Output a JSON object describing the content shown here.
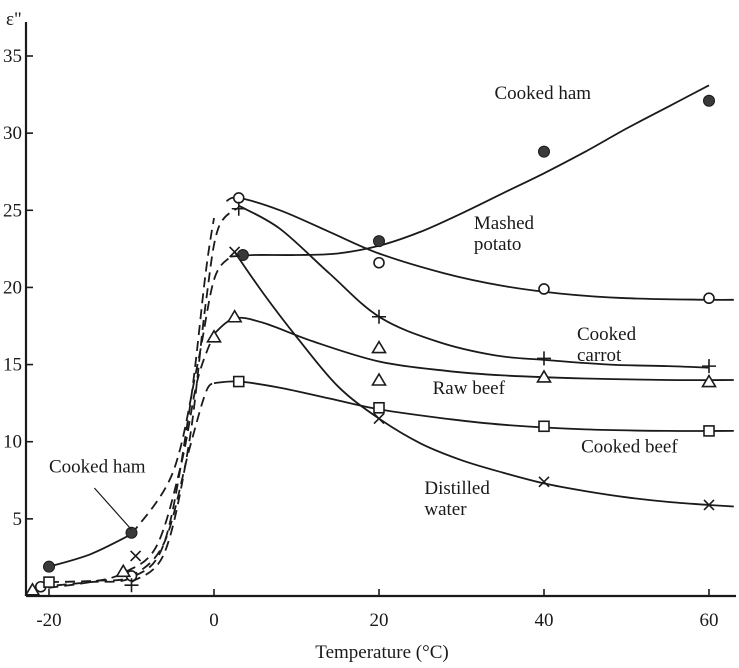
{
  "chart_data": {
    "type": "line",
    "ylabel": "ε\"",
    "xlabel": "Temperature (°C)",
    "xlim": [
      -20,
      62
    ],
    "ylim": [
      0,
      37
    ],
    "xticks": [
      -20,
      0,
      20,
      40,
      60
    ],
    "yticks": [
      5,
      10,
      15,
      20,
      25,
      30,
      35
    ],
    "grid": false,
    "series": [
      {
        "name": "Cooked ham",
        "marker": "filled-circle",
        "points": [
          [
            -20,
            1.9
          ],
          [
            -10,
            4.1
          ],
          [
            3.5,
            22.1
          ],
          [
            20,
            23.0
          ],
          [
            40,
            28.8
          ],
          [
            60,
            32.1
          ]
        ],
        "curve": [
          [
            -20,
            1.9
          ],
          [
            -15,
            2.7
          ],
          [
            -10,
            4.0
          ],
          [
            -5,
            8.0
          ],
          [
            -2,
            15.0
          ],
          [
            0,
            20.5
          ],
          [
            2,
            22.0
          ],
          [
            5,
            22.1
          ],
          [
            10,
            22.1
          ],
          [
            15,
            22.2
          ],
          [
            20,
            22.7
          ],
          [
            25,
            23.6
          ],
          [
            30,
            24.8
          ],
          [
            35,
            26.1
          ],
          [
            40,
            27.4
          ],
          [
            45,
            28.8
          ],
          [
            50,
            30.3
          ],
          [
            55,
            31.7
          ],
          [
            60,
            33.1
          ]
        ],
        "dashed_below": -10
      },
      {
        "name": "Mashed potato",
        "marker": "open-circle",
        "points": [
          [
            -21,
            0.6
          ],
          [
            -10,
            1.3
          ],
          [
            3,
            25.8
          ],
          [
            20,
            21.6
          ],
          [
            40,
            19.9
          ],
          [
            60,
            19.3
          ]
        ],
        "curve": [
          [
            -21,
            0.6
          ],
          [
            -15,
            0.9
          ],
          [
            -10,
            1.2
          ],
          [
            -6,
            3.5
          ],
          [
            -3,
            12.0
          ],
          [
            -1,
            21.0
          ],
          [
            0,
            24.5
          ],
          [
            1.5,
            25.6
          ],
          [
            3,
            25.8
          ],
          [
            8,
            25.0
          ],
          [
            14,
            23.6
          ],
          [
            20,
            22.2
          ],
          [
            28,
            20.9
          ],
          [
            35,
            20.1
          ],
          [
            42,
            19.6
          ],
          [
            50,
            19.3
          ],
          [
            60,
            19.2
          ],
          [
            63,
            19.2
          ]
        ],
        "dashed_span": [
          -21,
          1
        ]
      },
      {
        "name": "Cooked carrot",
        "marker": "plus",
        "points": [
          [
            -10,
            0.7
          ],
          [
            3,
            25.1
          ],
          [
            20,
            18.1
          ],
          [
            40,
            15.4
          ],
          [
            60,
            14.9
          ]
        ],
        "curve": [
          [
            3,
            25.3
          ],
          [
            8,
            23.8
          ],
          [
            14,
            20.9
          ],
          [
            20,
            18.1
          ],
          [
            27,
            16.5
          ],
          [
            34,
            15.6
          ],
          [
            40,
            15.3
          ],
          [
            48,
            15.0
          ],
          [
            55,
            14.9
          ],
          [
            60,
            14.8
          ]
        ],
        "dashed_span": [
          60,
          63
        ]
      },
      {
        "name": "Raw beef",
        "marker": "triangle",
        "points": [
          [
            -22,
            0.4
          ],
          [
            -11,
            1.6
          ],
          [
            0,
            16.8
          ],
          [
            2.5,
            18.1
          ],
          [
            20,
            16.1
          ],
          [
            20,
            14.0
          ],
          [
            40,
            14.2
          ],
          [
            60,
            13.9
          ]
        ],
        "curve": [
          [
            -22,
            0.4
          ],
          [
            -15,
            0.9
          ],
          [
            -11,
            1.5
          ],
          [
            -7,
            3.2
          ],
          [
            -4,
            8.5
          ],
          [
            -2,
            14.0
          ],
          [
            0,
            17.0
          ],
          [
            2.5,
            18.0
          ],
          [
            6,
            17.7
          ],
          [
            12,
            16.5
          ],
          [
            20,
            15.2
          ],
          [
            28,
            14.6
          ],
          [
            35,
            14.3
          ],
          [
            45,
            14.1
          ],
          [
            55,
            14.0
          ],
          [
            63,
            14.0
          ]
        ],
        "dashed_span": [
          -22,
          0
        ]
      },
      {
        "name": "Cooked beef",
        "marker": "square",
        "points": [
          [
            -20,
            0.9
          ],
          [
            3,
            13.9
          ],
          [
            20,
            12.2
          ],
          [
            40,
            11.0
          ],
          [
            60,
            10.7
          ]
        ],
        "curve": [
          [
            -20,
            0.9
          ],
          [
            -14,
            1.0
          ],
          [
            -10,
            1.3
          ],
          [
            -6,
            3.5
          ],
          [
            -3,
            9.5
          ],
          [
            -1,
            13.2
          ],
          [
            0,
            13.8
          ],
          [
            3,
            13.9
          ],
          [
            8,
            13.5
          ],
          [
            14,
            12.8
          ],
          [
            20,
            12.1
          ],
          [
            28,
            11.5
          ],
          [
            35,
            11.1
          ],
          [
            45,
            10.8
          ],
          [
            55,
            10.7
          ],
          [
            63,
            10.7
          ]
        ],
        "dashed_span": [
          -20,
          0
        ]
      },
      {
        "name": "Distilled water",
        "marker": "cross",
        "points": [
          [
            -9.5,
            2.6
          ],
          [
            2.5,
            22.3
          ],
          [
            20,
            11.5
          ],
          [
            40,
            7.4
          ],
          [
            60,
            5.9
          ]
        ],
        "curve": [
          [
            2.5,
            22.3
          ],
          [
            6,
            19.6
          ],
          [
            10,
            16.8
          ],
          [
            15,
            13.6
          ],
          [
            20,
            11.5
          ],
          [
            25,
            9.9
          ],
          [
            30,
            8.8
          ],
          [
            35,
            8.0
          ],
          [
            40,
            7.3
          ],
          [
            45,
            6.8
          ],
          [
            50,
            6.4
          ],
          [
            55,
            6.1
          ],
          [
            60,
            5.9
          ],
          [
            63,
            5.8
          ]
        ]
      }
    ],
    "annotations": [
      {
        "lines": [
          "Cooked ham"
        ],
        "x": 34,
        "y": 32.2,
        "anchor": "start"
      },
      {
        "lines": [
          "Cooked ham"
        ],
        "x": -20,
        "y": 8.0,
        "anchor": "start"
      },
      {
        "lines": [
          "Mashed",
          "potato"
        ],
        "x": 31.5,
        "y": 23.8,
        "anchor": "start"
      },
      {
        "lines": [
          "Cooked",
          "carrot"
        ],
        "x": 44,
        "y": 16.6,
        "anchor": "start"
      },
      {
        "lines": [
          "Raw beef"
        ],
        "x": 26.5,
        "y": 13.1,
        "anchor": "start"
      },
      {
        "lines": [
          "Cooked beef"
        ],
        "x": 44.5,
        "y": 9.3,
        "anchor": "start"
      },
      {
        "lines": [
          "Distilled",
          "water"
        ],
        "x": 25.5,
        "y": 6.6,
        "anchor": "start"
      }
    ]
  }
}
